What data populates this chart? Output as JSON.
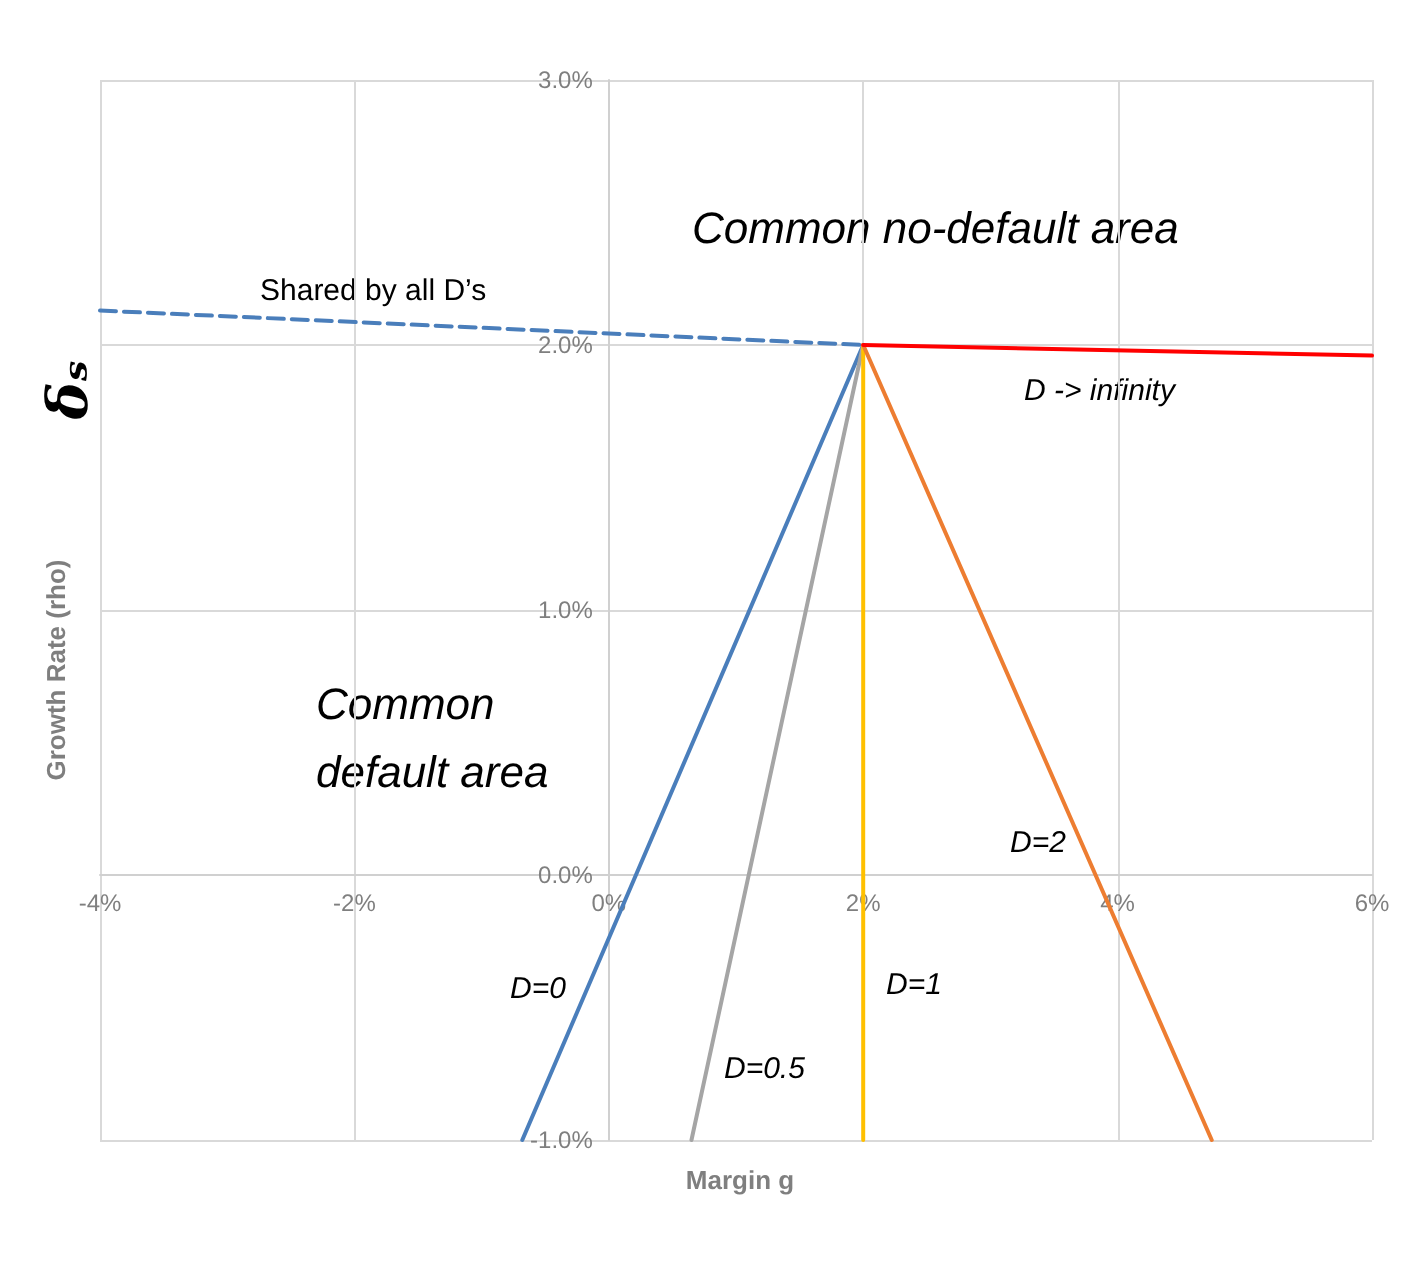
{
  "chart_data": {
    "type": "line",
    "xlabel": "Margin g",
    "ylabel": "Growth Rate (rho)",
    "xlim": [
      -4,
      6
    ],
    "xticks": [
      {
        "value": -4,
        "label": "-4%"
      },
      {
        "value": -2,
        "label": "-2%"
      },
      {
        "value": 0,
        "label": "0%"
      },
      {
        "value": 2,
        "label": "2%"
      },
      {
        "value": 4,
        "label": "4%"
      },
      {
        "value": 6,
        "label": "6%"
      }
    ],
    "ylim": [
      -1,
      3
    ],
    "yticks": [
      {
        "value": -1,
        "label": "-1.0%"
      },
      {
        "value": 0,
        "label": "0.0%"
      },
      {
        "value": 1,
        "label": "1.0%"
      },
      {
        "value": 2,
        "label": "2.0%"
      },
      {
        "value": 3,
        "label": "3.0%"
      }
    ],
    "grid": true,
    "marker": "none",
    "series": [
      {
        "color": "#4a7ebb",
        "line_style": "dashed",
        "x": [
          -4,
          2
        ],
        "values": [
          2.13,
          2
        ]
      },
      {
        "color": "#4a7ebb",
        "line_style": "solid",
        "x": [
          -0.68,
          2
        ],
        "values": [
          -1,
          2
        ]
      },
      {
        "color": "#a5a5a5",
        "line_style": "solid",
        "x": [
          0.65,
          2
        ],
        "values": [
          -1,
          2
        ]
      },
      {
        "color": "#ffc000",
        "line_style": "solid",
        "x": [
          2,
          2
        ],
        "values": [
          -1,
          2
        ]
      },
      {
        "color": "#ed7d31",
        "line_style": "solid",
        "x": [
          4.74,
          2
        ],
        "values": [
          -1,
          2
        ]
      },
      {
        "color": "#ff0000",
        "line_style": "solid",
        "x": [
          2,
          6
        ],
        "values": [
          2,
          1.96
        ]
      }
    ],
    "annotations": [
      "δₛ",
      "Common no-default area",
      "Common\ndefault area",
      "Shared by all D’s",
      "D -> infinity",
      "D=0",
      "D=0.5",
      "D=1",
      "D=2"
    ]
  }
}
